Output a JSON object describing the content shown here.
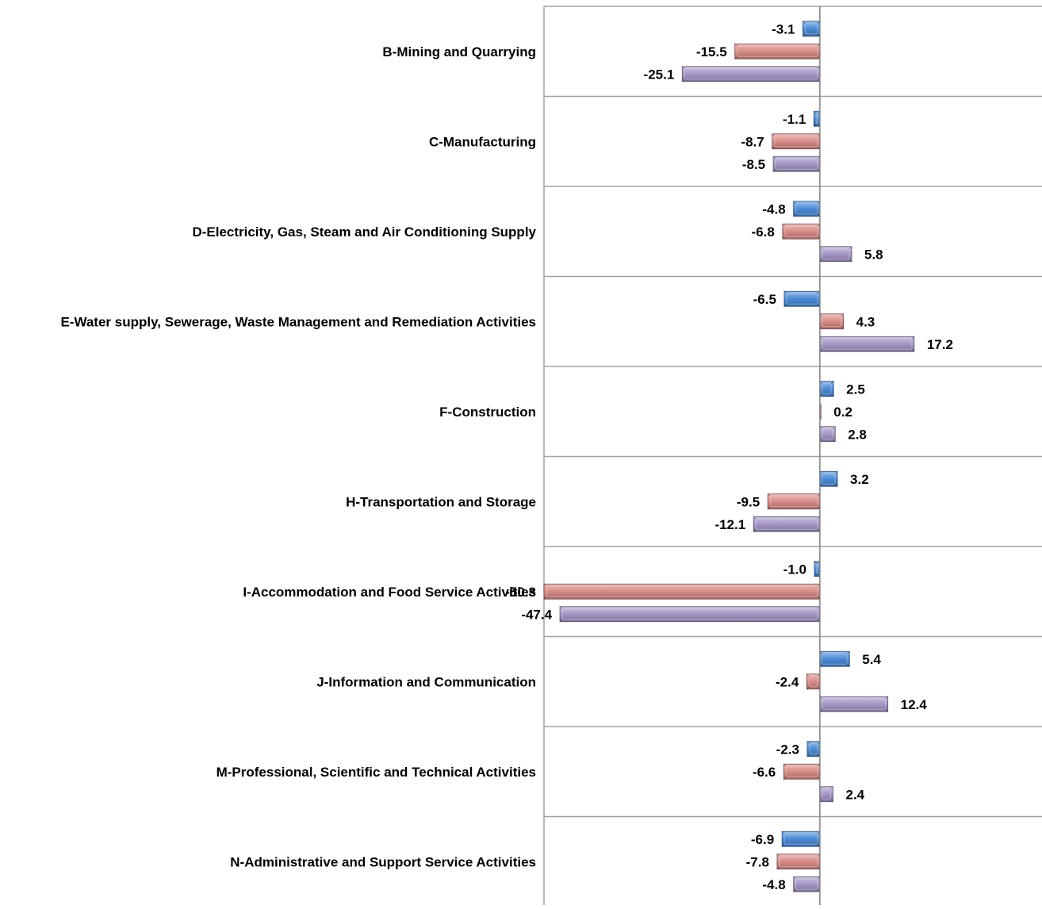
{
  "chart_data": {
    "type": "bar",
    "orientation": "horizontal",
    "categories": [
      "B-Mining and Quarrying",
      "C-Manufacturing",
      "D-Electricity, Gas, Steam and Air Conditioning Supply",
      "E-Water supply, Sewerage, Waste Management and Remediation Activities",
      "F-Construction",
      "H-Transportation and Storage",
      "I-Accommodation and Food Service Activities",
      "J-Information and Communication",
      "M-Professional, Scientific and Technical Activities",
      "N-Administrative and Support Service Activities"
    ],
    "series": [
      {
        "values": [
          -3.1,
          -1.1,
          -4.8,
          -6.5,
          2.5,
          3.2,
          -1.0,
          5.4,
          -2.3,
          -6.9
        ],
        "color": "#4a8bd6"
      },
      {
        "values": [
          -15.5,
          -8.7,
          -6.8,
          4.3,
          0.2,
          -9.5,
          -50.3,
          -2.4,
          -6.6,
          -7.8
        ],
        "color": "#d98b86"
      },
      {
        "values": [
          -25.1,
          -8.5,
          5.8,
          17.2,
          2.8,
          -12.1,
          -47.4,
          12.4,
          2.4,
          -4.8
        ],
        "color": "#a595c6"
      }
    ],
    "labels": [
      [
        "-3.1",
        "-1.1",
        "-4.8",
        "-6.5",
        "2.5",
        "3.2",
        "-1.0",
        "5.4",
        "-2.3",
        "-6.9"
      ],
      [
        "-15.5",
        "-8.7",
        "-6.8",
        "4.3",
        "0.2",
        "-9.5",
        "-50.3",
        "-2.4",
        "-6.6",
        "-7.8"
      ],
      [
        "-25.1",
        "-8.5",
        "5.8",
        "17.2",
        "2.8",
        "-12.1",
        "-47.4",
        "12.4",
        "2.4",
        "-4.8"
      ]
    ],
    "value_axis_range": [
      -50.3,
      40.5
    ],
    "gridlines": "horizontal between categories",
    "legend": "none",
    "colors": {
      "axis": "#808080",
      "grid": "#a0a0a0"
    }
  }
}
